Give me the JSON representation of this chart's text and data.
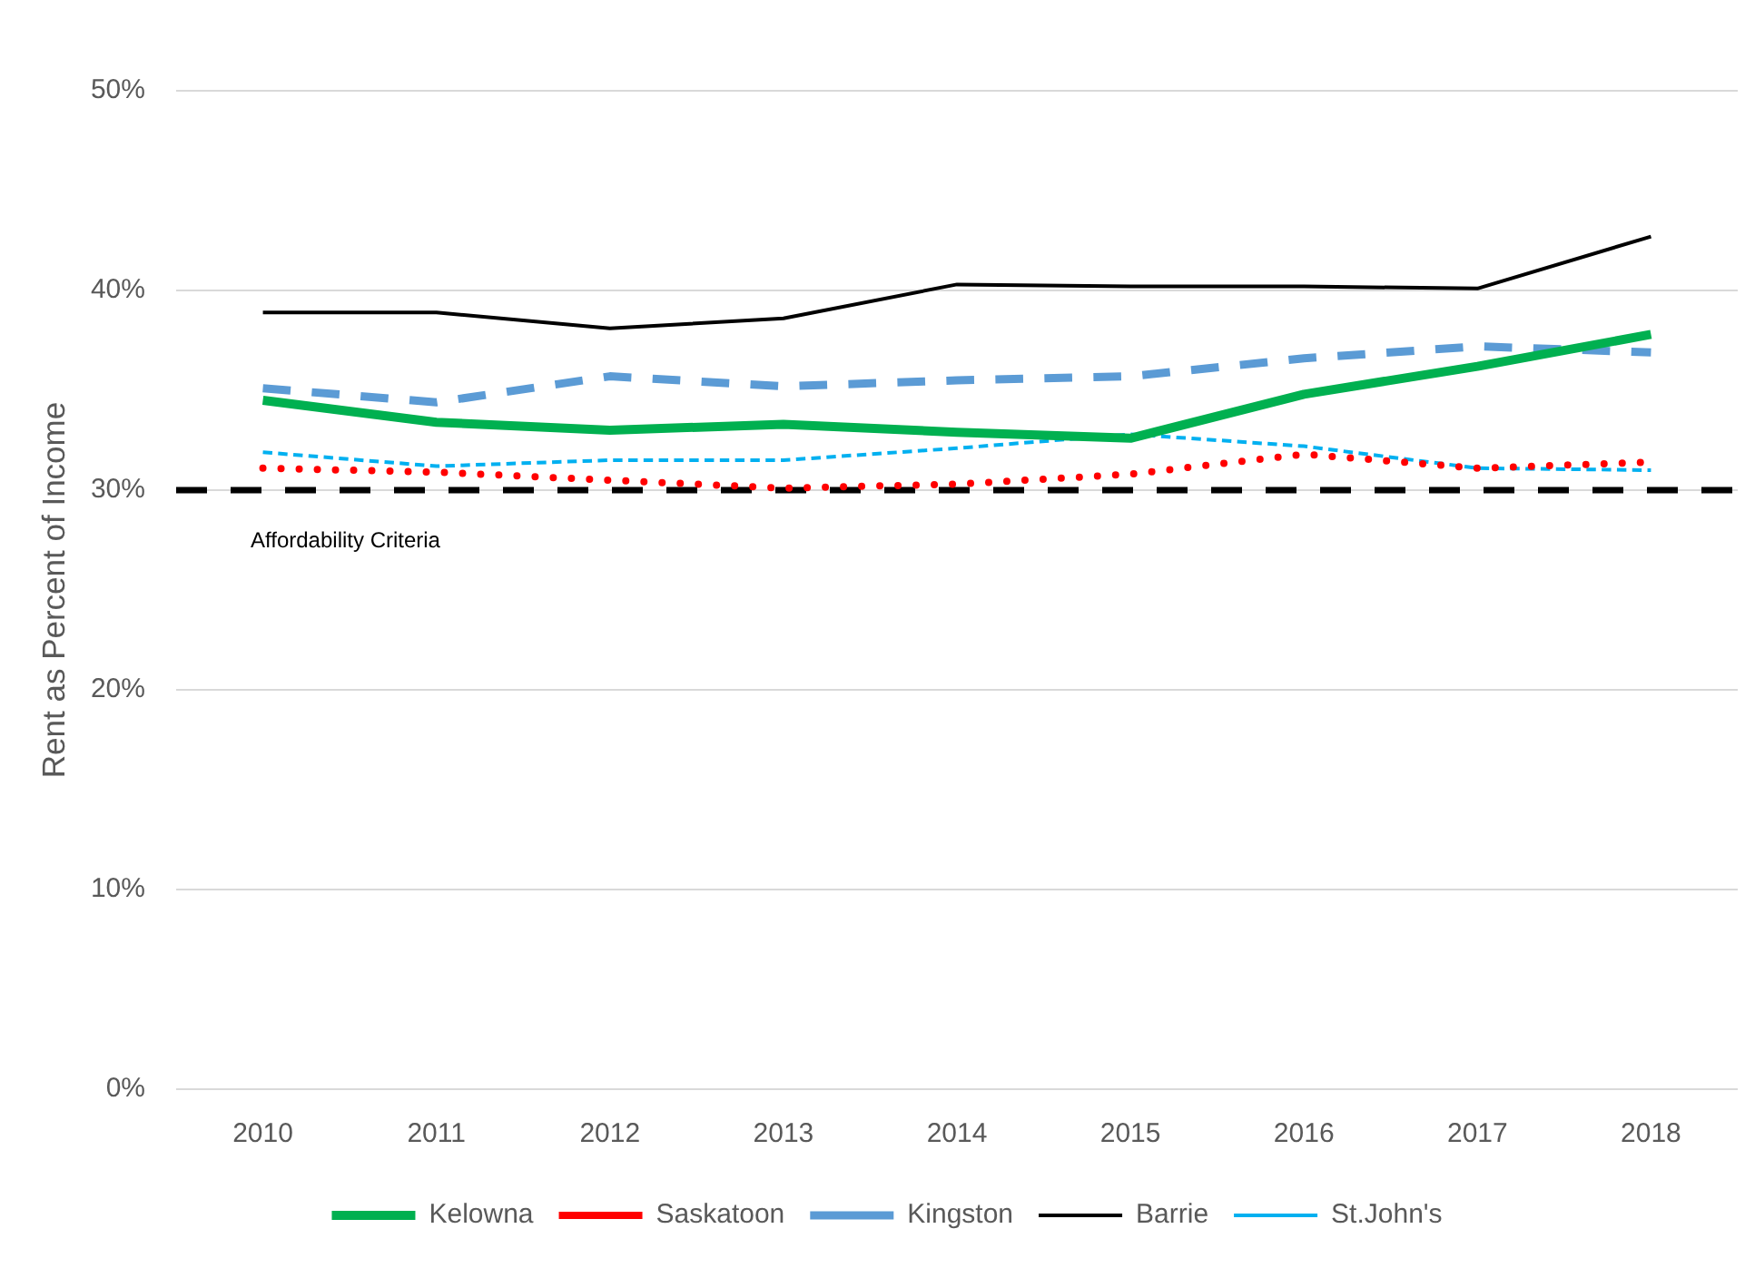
{
  "chart_data": {
    "type": "line",
    "ylabel": "Rent as Percent of Income",
    "categories": [
      "2010",
      "2011",
      "2012",
      "2013",
      "2014",
      "2015",
      "2016",
      "2017",
      "2018"
    ],
    "series": [
      {
        "name": "Kelowna",
        "color": "#00b050",
        "line_style": "solid",
        "values": [
          34.5,
          33.4,
          33.0,
          33.3,
          32.9,
          32.6,
          34.8,
          36.2,
          37.8
        ]
      },
      {
        "name": "Saskatoon",
        "color": "#ff0000",
        "line_style": "dotted",
        "values": [
          31.1,
          30.9,
          30.5,
          30.1,
          30.3,
          30.8,
          31.8,
          31.1,
          31.4
        ]
      },
      {
        "name": "Kingston",
        "color": "#5b9bd5",
        "line_style": "dashed",
        "values": [
          35.1,
          34.4,
          35.7,
          35.2,
          35.5,
          35.7,
          36.6,
          37.2,
          36.9
        ]
      },
      {
        "name": "Barrie",
        "color": "#000000",
        "line_style": "solid",
        "values": [
          38.9,
          38.9,
          38.1,
          38.6,
          40.3,
          40.2,
          40.2,
          40.1,
          42.7
        ]
      },
      {
        "name": "St.John's",
        "color": "#00b0f0",
        "line_style": "dashed",
        "values": [
          31.9,
          31.2,
          31.5,
          31.5,
          32.1,
          32.8,
          32.2,
          31.1,
          31.0
        ]
      }
    ],
    "ylim": [
      0,
      50
    ],
    "yticks": [
      {
        "value": 0,
        "label": "0%"
      },
      {
        "value": 10,
        "label": "10%"
      },
      {
        "value": 20,
        "label": "20%"
      },
      {
        "value": 30,
        "label": "30%"
      },
      {
        "value": 40,
        "label": "40%"
      },
      {
        "value": 50,
        "label": "50%"
      }
    ],
    "grid": "y",
    "legend": "bottom",
    "marker": "none",
    "ref_lines": [
      {
        "axis": "y",
        "value": 30,
        "label": "Affordability Criteria",
        "color": "#000000",
        "line_style": "dashed"
      }
    ]
  }
}
